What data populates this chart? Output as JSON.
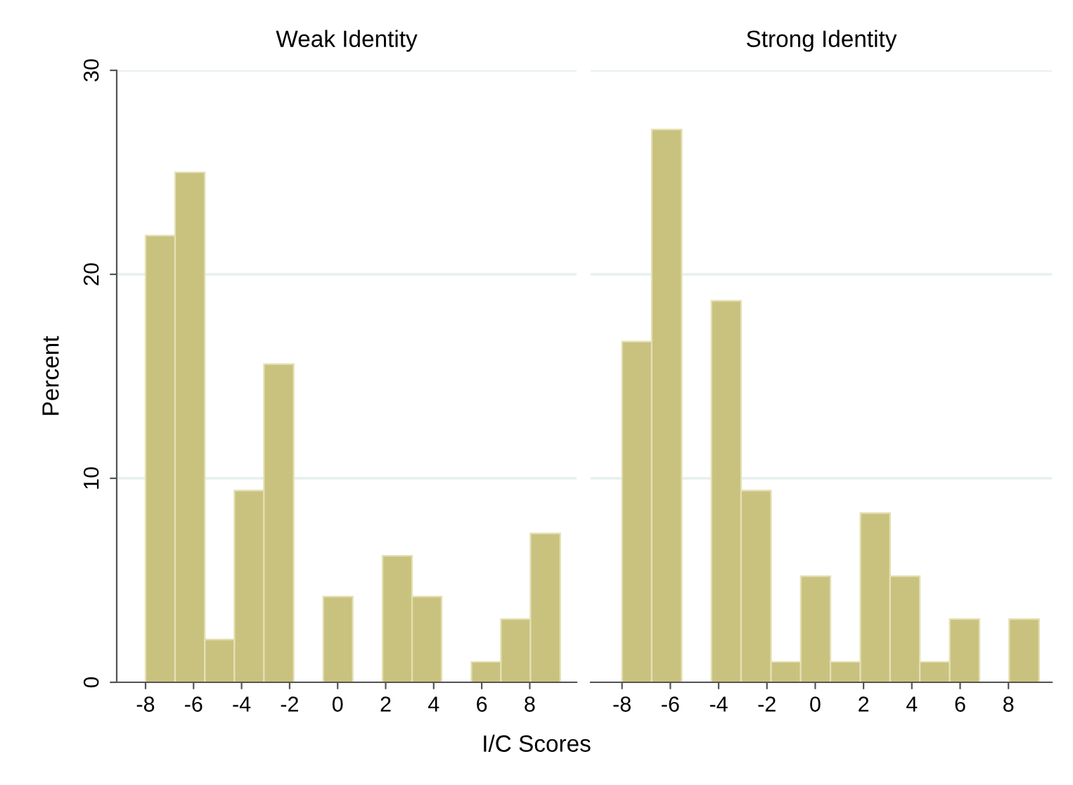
{
  "chart_data": [
    {
      "type": "histogram",
      "title": "Weak Identity",
      "xlabel": "I/C Scores",
      "ylabel": "Percent",
      "color": "#c9c27f",
      "bins": [
        -8,
        -6.77,
        -5.53,
        -4.3,
        -3.07,
        -1.83,
        -0.6,
        0.63,
        1.87,
        3.1,
        4.33,
        5.57,
        6.8,
        8.03,
        9.27
      ],
      "values": [
        21.9,
        25.0,
        2.1,
        9.4,
        15.6,
        0,
        4.2,
        0,
        6.2,
        4.2,
        0,
        1.0,
        3.1,
        7.3
      ],
      "xlim": [
        -9.2,
        9.95
      ],
      "xticks": [
        {
          "value": -8,
          "label": "-8"
        },
        {
          "value": -6,
          "label": "-6"
        },
        {
          "value": -4,
          "label": "-4"
        },
        {
          "value": -2,
          "label": "-2"
        },
        0,
        2,
        4,
        6,
        8
      ],
      "ylim": [
        0,
        30
      ],
      "yticks": [
        0,
        10,
        20,
        30
      ],
      "grid": "y"
    },
    {
      "type": "histogram",
      "title": "Strong Identity",
      "color": "#c9c27f",
      "bins": [
        -8,
        -6.77,
        -5.53,
        -4.3,
        -3.07,
        -1.83,
        -0.6,
        0.63,
        1.87,
        3.1,
        4.33,
        5.57,
        6.8,
        8.03,
        9.27
      ],
      "values": [
        16.7,
        27.1,
        0,
        18.7,
        9.4,
        1.0,
        5.2,
        1.0,
        8.3,
        5.2,
        1.0,
        3.1,
        0,
        3.1
      ],
      "xlim": [
        -9.3,
        9.8
      ],
      "xticks": [
        {
          "value": -8,
          "label": "-8"
        },
        {
          "value": -6,
          "label": "-6"
        },
        {
          "value": -4,
          "label": "-4"
        },
        {
          "value": -2,
          "label": "-2"
        },
        0,
        2,
        4,
        6,
        8
      ],
      "ylim": [
        0,
        30
      ],
      "yticks": [
        0,
        10,
        20,
        30
      ],
      "grid": "y",
      "tick_labels": "x"
    }
  ]
}
